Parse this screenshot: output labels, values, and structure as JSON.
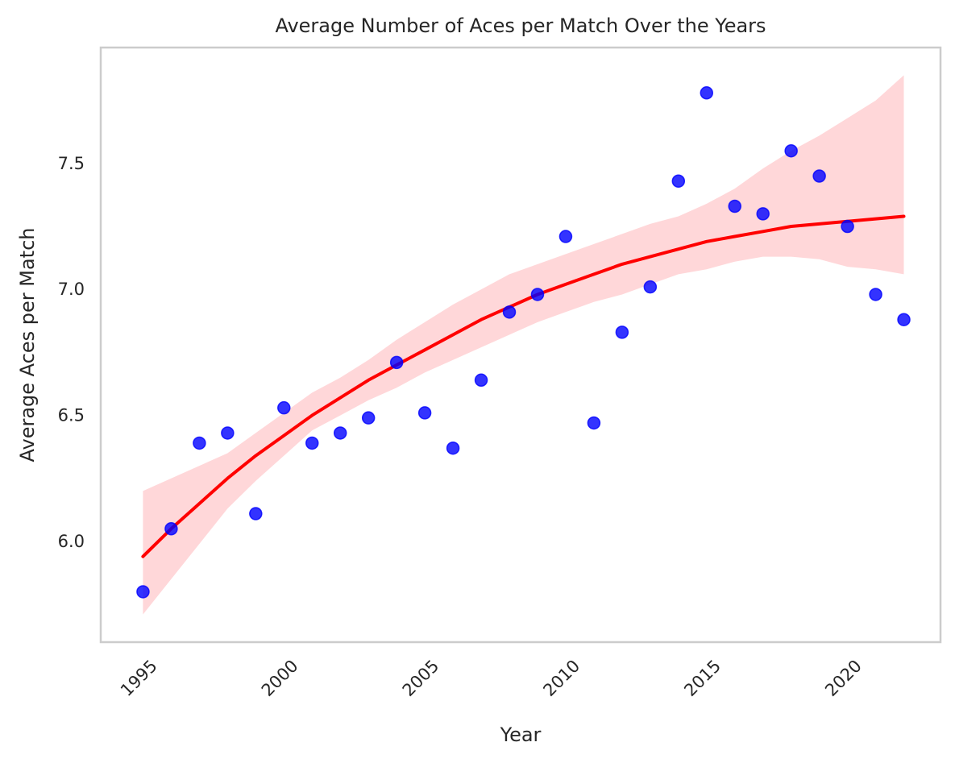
{
  "chart_data": {
    "type": "scatter",
    "title": "Average Number of Aces per Match Over the Years",
    "xlabel": "Year",
    "ylabel": "Average Aces per Match",
    "xlim": [
      1993.5,
      2023.3
    ],
    "ylim": [
      5.6,
      7.96
    ],
    "x_ticks": [
      1995,
      2000,
      2005,
      2010,
      2015,
      2020
    ],
    "y_ticks": [
      6.0,
      6.5,
      7.0,
      7.5
    ],
    "grid": false,
    "points": {
      "x": [
        1995,
        1996,
        1997,
        1998,
        1999,
        2000,
        2001,
        2002,
        2003,
        2004,
        2005,
        2006,
        2007,
        2008,
        2009,
        2010,
        2011,
        2012,
        2013,
        2014,
        2015,
        2016,
        2017,
        2018,
        2019,
        2020,
        2021,
        2022
      ],
      "y": [
        5.8,
        6.05,
        6.39,
        6.43,
        6.11,
        6.53,
        6.39,
        6.43,
        6.49,
        6.71,
        6.51,
        6.37,
        6.64,
        6.91,
        6.98,
        7.21,
        6.47,
        6.83,
        7.01,
        7.43,
        7.78,
        7.33,
        7.3,
        7.55,
        7.45,
        7.25,
        6.98,
        6.88
      ],
      "color": "#0000ff"
    },
    "fit": {
      "x": [
        1995,
        1996,
        1997,
        1998,
        1999,
        2000,
        2001,
        2002,
        2003,
        2004,
        2005,
        2006,
        2007,
        2008,
        2009,
        2010,
        2011,
        2012,
        2013,
        2014,
        2015,
        2016,
        2017,
        2018,
        2019,
        2020,
        2021,
        2022
      ],
      "y": [
        5.94,
        6.05,
        6.15,
        6.25,
        6.34,
        6.42,
        6.5,
        6.57,
        6.64,
        6.7,
        6.76,
        6.82,
        6.88,
        6.93,
        6.98,
        7.02,
        7.06,
        7.1,
        7.13,
        7.16,
        7.19,
        7.21,
        7.23,
        7.25,
        7.26,
        7.27,
        7.28,
        7.29
      ],
      "ci_lower": [
        5.71,
        5.85,
        5.99,
        6.13,
        6.24,
        6.34,
        6.44,
        6.5,
        6.56,
        6.61,
        6.67,
        6.72,
        6.77,
        6.82,
        6.87,
        6.91,
        6.95,
        6.98,
        7.02,
        7.06,
        7.08,
        7.11,
        7.13,
        7.13,
        7.12,
        7.09,
        7.08,
        7.06
      ],
      "ci_upper": [
        6.2,
        6.25,
        6.3,
        6.35,
        6.43,
        6.51,
        6.59,
        6.65,
        6.72,
        6.8,
        6.87,
        6.94,
        7.0,
        7.06,
        7.1,
        7.14,
        7.18,
        7.22,
        7.26,
        7.29,
        7.34,
        7.4,
        7.48,
        7.55,
        7.61,
        7.68,
        7.75,
        7.85
      ],
      "color": "#ff0000",
      "ci_color": "#ffb6b9"
    }
  }
}
